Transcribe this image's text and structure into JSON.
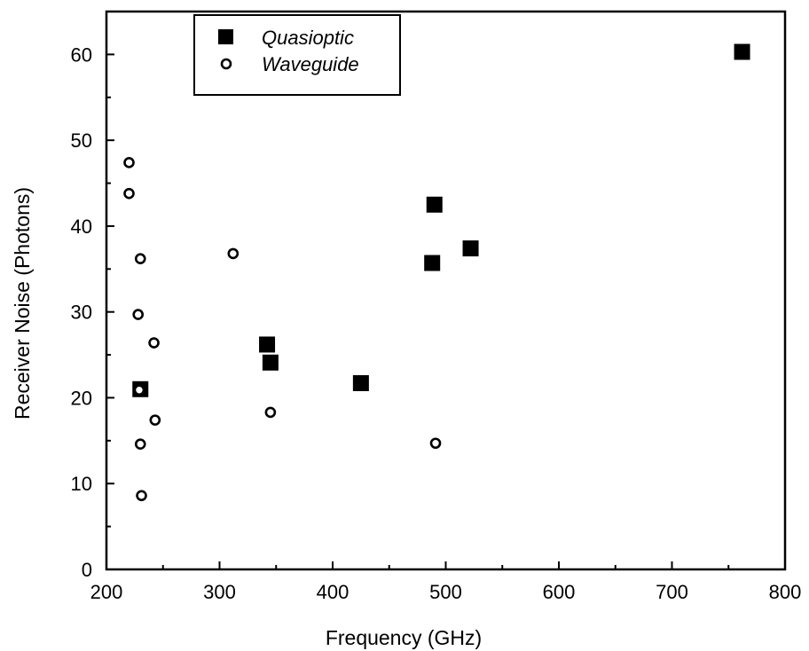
{
  "chart_data": {
    "type": "scatter",
    "xlabel": "Frequency (GHz)",
    "ylabel": "Receiver Noise (Photons)",
    "xlim": [
      200,
      800
    ],
    "ylim": [
      0,
      65
    ],
    "xticks": [
      200,
      300,
      400,
      500,
      600,
      700,
      800
    ],
    "yticks": [
      0,
      10,
      20,
      30,
      40,
      50,
      60
    ],
    "grid": false,
    "legend_position": "top-left",
    "series": [
      {
        "name": "Quasioptic",
        "marker": "filled-square",
        "color": "#000000",
        "points": [
          {
            "x": 230,
            "y": 21.0
          },
          {
            "x": 342,
            "y": 26.2
          },
          {
            "x": 345,
            "y": 24.1
          },
          {
            "x": 425,
            "y": 21.7
          },
          {
            "x": 488,
            "y": 35.7
          },
          {
            "x": 490,
            "y": 42.5
          },
          {
            "x": 522,
            "y": 37.4
          },
          {
            "x": 762,
            "y": 60.3
          }
        ]
      },
      {
        "name": "Waveguide",
        "marker": "open-circle",
        "color": "#000000",
        "points": [
          {
            "x": 220,
            "y": 47.4
          },
          {
            "x": 220,
            "y": 43.8
          },
          {
            "x": 230,
            "y": 36.2
          },
          {
            "x": 228,
            "y": 29.7
          },
          {
            "x": 242,
            "y": 26.4
          },
          {
            "x": 229,
            "y": 20.9
          },
          {
            "x": 243,
            "y": 17.4
          },
          {
            "x": 230,
            "y": 14.6
          },
          {
            "x": 231,
            "y": 8.6
          },
          {
            "x": 312,
            "y": 36.8
          },
          {
            "x": 345,
            "y": 18.3
          },
          {
            "x": 491,
            "y": 14.7
          }
        ]
      }
    ]
  }
}
